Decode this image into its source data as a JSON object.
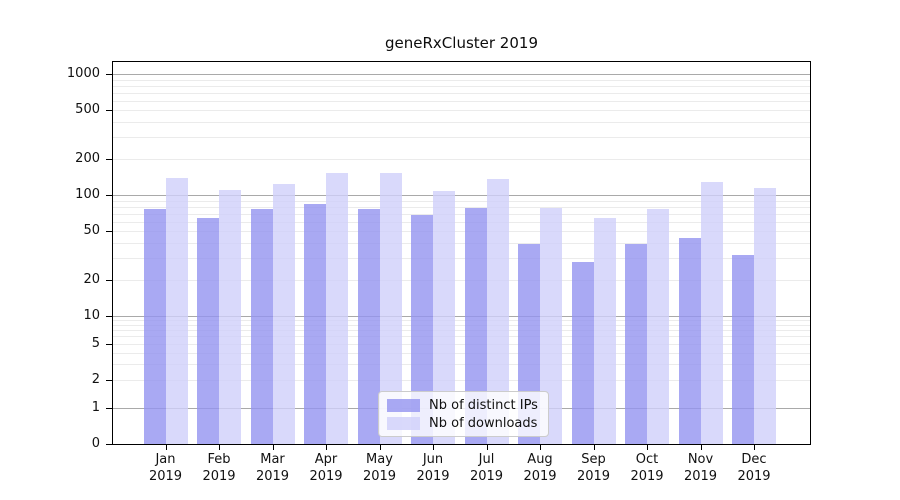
{
  "chart_data": {
    "type": "bar",
    "title": "geneRxCluster 2019",
    "categories": [
      "Jan",
      "Feb",
      "Mar",
      "Apr",
      "May",
      "Jun",
      "Jul",
      "Aug",
      "Sep",
      "Oct",
      "Nov",
      "Dec"
    ],
    "year_label": "2019",
    "series": [
      {
        "name": "Nb of distinct IPs",
        "color": "rgba(148,148,240,0.8)",
        "values": [
          76,
          64,
          77,
          84,
          76,
          68,
          78,
          39,
          28,
          39,
          44,
          32
        ]
      },
      {
        "name": "Nb of downloads",
        "color": "rgba(208,208,250,0.8)",
        "values": [
          138,
          111,
          123,
          151,
          151,
          108,
          136,
          78,
          65,
          76,
          128,
          114
        ]
      }
    ],
    "y_axis": {
      "scale": "log",
      "tick_labels": [
        0,
        1,
        2,
        5,
        10,
        20,
        50,
        100,
        200,
        500,
        1000
      ],
      "major_grid_values": [
        1,
        10,
        100,
        1000
      ],
      "minor_grid_decades": [
        1,
        10,
        100
      ],
      "range": [
        0,
        1000
      ]
    },
    "x_axis": {
      "label_line2": "2019"
    },
    "legend": {
      "position": "bottom-center",
      "entries": [
        "Nb of distinct IPs",
        "Nb of downloads"
      ]
    },
    "grid": true
  },
  "colors": {
    "bar_distinct_ips": "rgba(148,148,240,0.8)",
    "bar_downloads": "rgba(208,208,250,0.8)",
    "grid_major": "#a9a9a9",
    "grid_minor": "#ebebeb",
    "axis": "#000000",
    "legend_border": "#cccccc",
    "legend_background": "rgba(255,255,255,0.8)",
    "text": "#111111"
  }
}
